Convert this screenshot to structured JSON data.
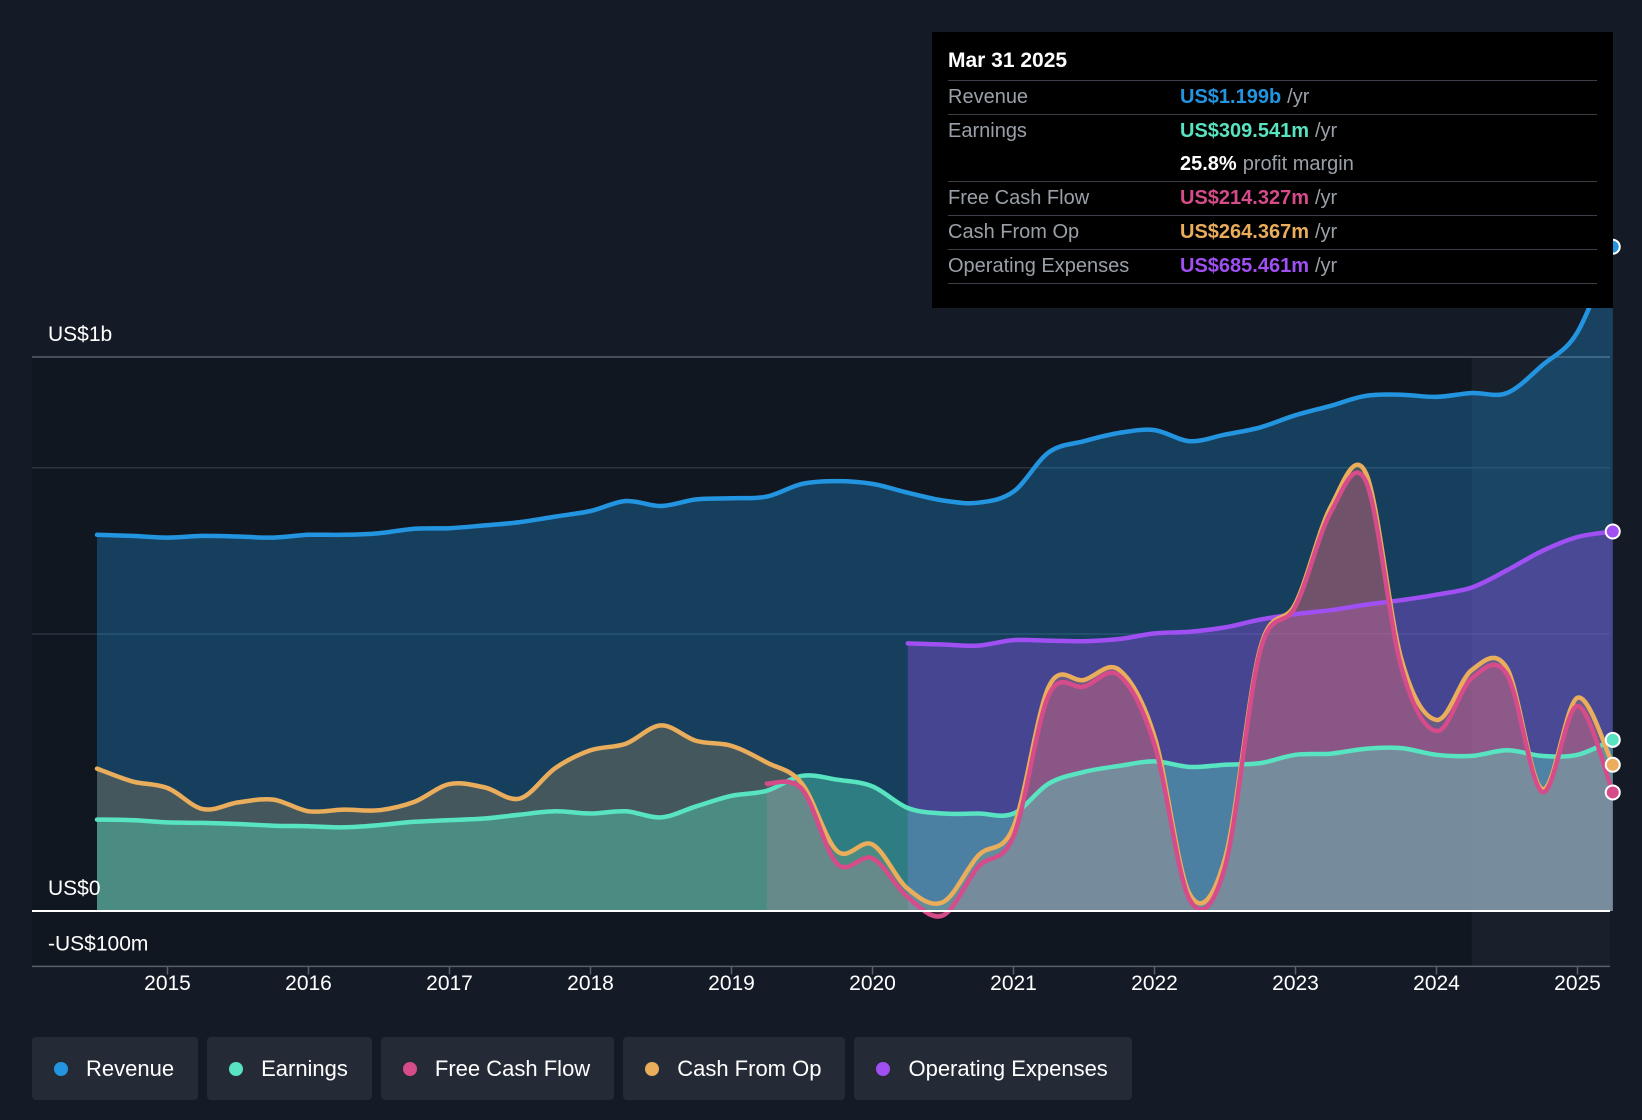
{
  "chart_data": {
    "type": "area",
    "y_axis_labels": {
      "top": "US$1b",
      "zero": "US$0",
      "bottom": "-US$100m"
    },
    "ylim": [
      -100,
      1200
    ],
    "gridlines": [
      1000,
      800,
      500
    ],
    "x_ticks": [
      "2015",
      "2016",
      "2017",
      "2018",
      "2019",
      "2020",
      "2021",
      "2022",
      "2023",
      "2024",
      "2025"
    ],
    "x_range": [
      2014.0,
      2025.25
    ],
    "series": [
      {
        "name": "Revenue",
        "color": "#2394df",
        "points": [
          [
            2014.5,
            679
          ],
          [
            2014.75,
            677
          ],
          [
            2015.0,
            674
          ],
          [
            2015.25,
            677
          ],
          [
            2015.5,
            676
          ],
          [
            2015.75,
            674
          ],
          [
            2016.0,
            679
          ],
          [
            2016.25,
            679
          ],
          [
            2016.5,
            682
          ],
          [
            2016.75,
            690
          ],
          [
            2017.0,
            691
          ],
          [
            2017.25,
            696
          ],
          [
            2017.5,
            702
          ],
          [
            2017.75,
            712
          ],
          [
            2018.0,
            722
          ],
          [
            2018.25,
            740
          ],
          [
            2018.5,
            731
          ],
          [
            2018.75,
            743
          ],
          [
            2019.0,
            745
          ],
          [
            2019.25,
            748
          ],
          [
            2019.5,
            771
          ],
          [
            2019.75,
            776
          ],
          [
            2020.0,
            771
          ],
          [
            2020.25,
            755
          ],
          [
            2020.5,
            741
          ],
          [
            2020.75,
            737
          ],
          [
            2021.0,
            757
          ],
          [
            2021.25,
            828
          ],
          [
            2021.5,
            848
          ],
          [
            2021.75,
            863
          ],
          [
            2022.0,
            868
          ],
          [
            2022.25,
            848
          ],
          [
            2022.5,
            860
          ],
          [
            2022.75,
            873
          ],
          [
            2023.0,
            895
          ],
          [
            2023.25,
            912
          ],
          [
            2023.5,
            930
          ],
          [
            2023.75,
            932
          ],
          [
            2024.0,
            928
          ],
          [
            2024.25,
            935
          ],
          [
            2024.5,
            935
          ],
          [
            2024.75,
            985
          ],
          [
            2025.0,
            1045
          ],
          [
            2025.25,
            1199
          ]
        ]
      },
      {
        "name": "Earnings",
        "color": "#58e3c1",
        "points": [
          [
            2014.5,
            165
          ],
          [
            2014.75,
            164
          ],
          [
            2015.0,
            160
          ],
          [
            2015.25,
            159
          ],
          [
            2015.5,
            157
          ],
          [
            2015.75,
            154
          ],
          [
            2016.0,
            153
          ],
          [
            2016.25,
            151
          ],
          [
            2016.5,
            155
          ],
          [
            2016.75,
            161
          ],
          [
            2017.0,
            164
          ],
          [
            2017.25,
            167
          ],
          [
            2017.5,
            174
          ],
          [
            2017.75,
            180
          ],
          [
            2018.0,
            176
          ],
          [
            2018.25,
            180
          ],
          [
            2018.5,
            169
          ],
          [
            2018.75,
            189
          ],
          [
            2019.0,
            208
          ],
          [
            2019.25,
            217
          ],
          [
            2019.5,
            244
          ],
          [
            2019.75,
            237
          ],
          [
            2020.0,
            225
          ],
          [
            2020.25,
            186
          ],
          [
            2020.5,
            176
          ],
          [
            2020.75,
            176
          ],
          [
            2021.0,
            176
          ],
          [
            2021.25,
            230
          ],
          [
            2021.5,
            251
          ],
          [
            2021.75,
            262
          ],
          [
            2022.0,
            270
          ],
          [
            2022.25,
            260
          ],
          [
            2022.5,
            264
          ],
          [
            2022.75,
            267
          ],
          [
            2023.0,
            282
          ],
          [
            2023.25,
            284
          ],
          [
            2023.5,
            293
          ],
          [
            2023.75,
            294
          ],
          [
            2024.0,
            282
          ],
          [
            2024.25,
            280
          ],
          [
            2024.5,
            290
          ],
          [
            2024.75,
            280
          ],
          [
            2025.0,
            282
          ],
          [
            2025.25,
            309
          ]
        ]
      },
      {
        "name": "Free Cash Flow",
        "color": "#d64b8a",
        "points": [
          [
            2019.25,
            230
          ],
          [
            2019.5,
            220
          ],
          [
            2019.75,
            85
          ],
          [
            2020.0,
            95
          ],
          [
            2020.25,
            25
          ],
          [
            2020.5,
            -8
          ],
          [
            2020.75,
            80
          ],
          [
            2021.0,
            135
          ],
          [
            2021.25,
            390
          ],
          [
            2021.5,
            405
          ],
          [
            2021.75,
            425
          ],
          [
            2022.0,
            300
          ],
          [
            2022.25,
            20
          ],
          [
            2022.5,
            80
          ],
          [
            2022.75,
            470
          ],
          [
            2023.0,
            550
          ],
          [
            2023.25,
            720
          ],
          [
            2023.5,
            775
          ],
          [
            2023.75,
            440
          ],
          [
            2024.0,
            325
          ],
          [
            2024.25,
            420
          ],
          [
            2024.5,
            427
          ],
          [
            2024.75,
            215
          ],
          [
            2025.0,
            370
          ],
          [
            2025.25,
            214
          ]
        ]
      },
      {
        "name": "Cash From Op",
        "color": "#e9ad5c",
        "points": [
          [
            2014.5,
            257
          ],
          [
            2014.75,
            234
          ],
          [
            2015.0,
            222
          ],
          [
            2015.25,
            184
          ],
          [
            2015.5,
            196
          ],
          [
            2015.75,
            201
          ],
          [
            2016.0,
            180
          ],
          [
            2016.25,
            183
          ],
          [
            2016.5,
            182
          ],
          [
            2016.75,
            197
          ],
          [
            2017.0,
            229
          ],
          [
            2017.25,
            223
          ],
          [
            2017.5,
            203
          ],
          [
            2017.75,
            258
          ],
          [
            2018.0,
            290
          ],
          [
            2018.25,
            302
          ],
          [
            2018.5,
            335
          ],
          [
            2018.75,
            307
          ],
          [
            2019.0,
            298
          ],
          [
            2019.25,
            268
          ],
          [
            2019.5,
            230
          ],
          [
            2019.75,
            108
          ],
          [
            2020.0,
            120
          ],
          [
            2020.25,
            40
          ],
          [
            2020.5,
            16
          ],
          [
            2020.75,
            100
          ],
          [
            2021.0,
            152
          ],
          [
            2021.25,
            405
          ],
          [
            2021.5,
            417
          ],
          [
            2021.75,
            435
          ],
          [
            2022.0,
            315
          ],
          [
            2022.25,
            30
          ],
          [
            2022.5,
            95
          ],
          [
            2022.75,
            475
          ],
          [
            2023.0,
            555
          ],
          [
            2023.25,
            730
          ],
          [
            2023.5,
            790
          ],
          [
            2023.75,
            455
          ],
          [
            2024.0,
            345
          ],
          [
            2024.25,
            435
          ],
          [
            2024.5,
            438
          ],
          [
            2024.75,
            220
          ],
          [
            2025.0,
            385
          ],
          [
            2025.25,
            264
          ]
        ]
      },
      {
        "name": "Operating Expenses",
        "color": "#a04ff3",
        "points": [
          [
            2020.25,
            483
          ],
          [
            2020.5,
            481
          ],
          [
            2020.75,
            479
          ],
          [
            2021.0,
            489
          ],
          [
            2021.25,
            488
          ],
          [
            2021.5,
            487
          ],
          [
            2021.75,
            491
          ],
          [
            2022.0,
            501
          ],
          [
            2022.25,
            504
          ],
          [
            2022.5,
            512
          ],
          [
            2022.75,
            526
          ],
          [
            2023.0,
            536
          ],
          [
            2023.25,
            543
          ],
          [
            2023.5,
            553
          ],
          [
            2023.75,
            561
          ],
          [
            2024.0,
            571
          ],
          [
            2024.25,
            584
          ],
          [
            2024.5,
            615
          ],
          [
            2024.75,
            650
          ],
          [
            2025.0,
            675
          ],
          [
            2025.25,
            685
          ]
        ]
      }
    ]
  },
  "tooltip": {
    "date": "Mar 31 2025",
    "rows": [
      {
        "label": "Revenue",
        "value": "US$1.199b",
        "unit": "/yr",
        "color": "#2394df"
      },
      {
        "label": "Earnings",
        "value": "US$309.541m",
        "unit": "/yr",
        "color": "#58e3c1"
      },
      {
        "label": "",
        "value": "25.8%",
        "unit": "profit margin",
        "color": "#ffffff"
      },
      {
        "label": "Free Cash Flow",
        "value": "US$214.327m",
        "unit": "/yr",
        "color": "#d64b8a"
      },
      {
        "label": "Cash From Op",
        "value": "US$264.367m",
        "unit": "/yr",
        "color": "#e9ad5c"
      },
      {
        "label": "Operating Expenses",
        "value": "US$685.461m",
        "unit": "/yr",
        "color": "#a04ff3"
      }
    ]
  },
  "legend": [
    {
      "label": "Revenue",
      "color": "#2394df"
    },
    {
      "label": "Earnings",
      "color": "#58e3c1"
    },
    {
      "label": "Free Cash Flow",
      "color": "#d64b8a"
    },
    {
      "label": "Cash From Op",
      "color": "#e9ad5c"
    },
    {
      "label": "Operating Expenses",
      "color": "#a04ff3"
    }
  ]
}
